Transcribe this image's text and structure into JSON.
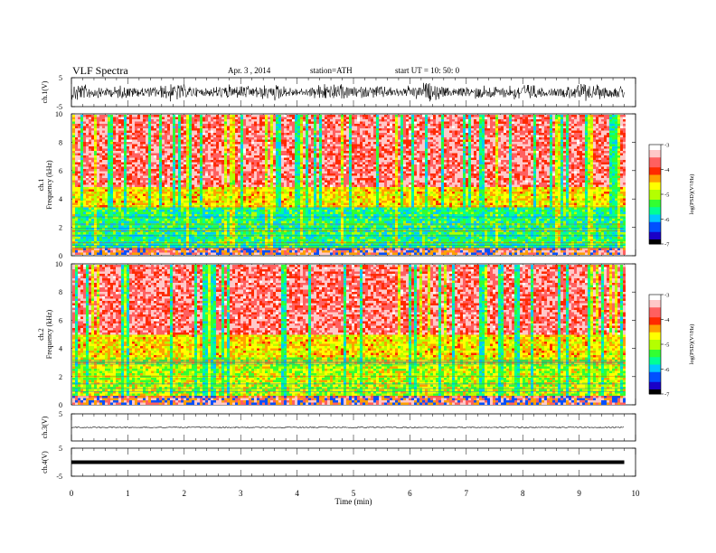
{
  "header": {
    "title": "VLF  Spectra",
    "date": "Apr. 3  , 2014",
    "station": "station=ATH",
    "start": "start  UT  =   10: 50: 0"
  },
  "colorbar": {
    "label": "log(PSD)(V²/Hz)",
    "ticks": [
      "-3",
      "-4",
      "-5",
      "-6",
      "-7"
    ],
    "colors": [
      "#000000",
      "#1a00c8",
      "#0050ff",
      "#00c8ff",
      "#00ff96",
      "#32ff32",
      "#b4ff00",
      "#ffff00",
      "#ffa000",
      "#ff2a00",
      "#ff6060",
      "#ffc8c8",
      "#ffffff"
    ]
  },
  "chart_data": [
    {
      "type": "line",
      "ylabel": "ch.1(V)",
      "ylim": [
        -5,
        5
      ],
      "yticks": [
        "5",
        "-5"
      ],
      "xlim": [
        0,
        10
      ],
      "x_duration_min": 9.8,
      "amplitude_description": "broadband noise around 0 V, peaks near ±4 V",
      "series_color": "#000000"
    },
    {
      "type": "heatmap",
      "ylabel": "ch.1\nFrequency  (kHz)",
      "ylim": [
        0,
        10
      ],
      "yticks": [
        "0",
        "2",
        "4",
        "6",
        "8",
        "10"
      ],
      "xlim": [
        0,
        10
      ],
      "x_duration_min": 9.8,
      "value_range": [
        -7,
        -3
      ],
      "dominant": {
        "0-0.6kHz": "mixed red/yellow/blue lines",
        "0.6-3.5kHz": "cyan/green/blue",
        "3.5-5kHz": "green/yellow",
        "5-10kHz": "red/yellow with vertical green/blue bursts"
      }
    },
    {
      "type": "heatmap",
      "ylabel": "ch.2\nFrequency  (kHz)",
      "ylim": [
        0,
        10
      ],
      "yticks": [
        "0",
        "2",
        "4",
        "6",
        "8",
        "10"
      ],
      "xlim": [
        0,
        10
      ],
      "x_duration_min": 9.8,
      "value_range": [
        -7,
        -3
      ],
      "dominant": {
        "0-0.8kHz": "mixed red/yellow/blue lines",
        "0.8-3.5kHz": "yellow/green with red lines",
        "3.5-5kHz": "cyan/green",
        "5-10kHz": "red/yellow with vertical green/blue bursts"
      }
    },
    {
      "type": "line",
      "ylabel": "ch.3(V)",
      "ylim": [
        -5,
        5
      ],
      "yticks": [
        "5"
      ],
      "xlim": [
        0,
        10
      ],
      "x_duration_min": 9.8,
      "level": 0,
      "series_color": "#000000"
    },
    {
      "type": "line",
      "ylabel": "ch.4(V)",
      "ylim": [
        -5,
        5
      ],
      "yticks": [
        "5",
        "-5"
      ],
      "xlim": [
        0,
        10
      ],
      "x_duration_min": 9.8,
      "level": 0,
      "series_color": "#000000"
    }
  ],
  "x_axis": {
    "label": "Time  (min)",
    "ticks": [
      "0",
      "1",
      "2",
      "3",
      "4",
      "5",
      "6",
      "7",
      "8",
      "9",
      "10"
    ]
  }
}
